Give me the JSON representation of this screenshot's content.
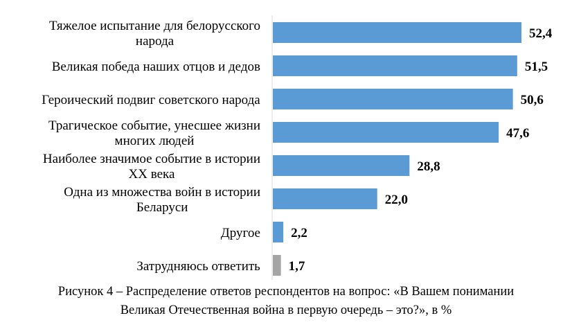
{
  "chart_data": {
    "type": "bar",
    "orientation": "horizontal",
    "categories": [
      [
        "Тяжелое испытание для белорусского",
        "народа"
      ],
      [
        "Великая победа наших отцов и дедов"
      ],
      [
        "Героический подвиг советского народа"
      ],
      [
        "Трагическое событие, унесшее жизни",
        "многих людей"
      ],
      [
        "Наиболее значимое событие в истории",
        "XX века"
      ],
      [
        "Одна из множества войн в истории",
        "Беларуси"
      ],
      [
        "Другое"
      ],
      [
        "Затрудняюсь ответить"
      ]
    ],
    "values": [
      52.4,
      51.5,
      50.6,
      47.6,
      28.8,
      22.0,
      2.2,
      1.7
    ],
    "value_labels": [
      "52,4",
      "51,5",
      "50,6",
      "47,6",
      "28,8",
      "22,0",
      "2,2",
      "1,7"
    ],
    "bar_colors": [
      "#5b9bd5",
      "#5b9bd5",
      "#5b9bd5",
      "#5b9bd5",
      "#5b9bd5",
      "#5b9bd5",
      "#5b9bd5",
      "#a5a5a5"
    ],
    "xlim": [
      0,
      60
    ],
    "grid": false,
    "legend": false
  },
  "caption": {
    "line1": "Рисунок 4 – Распределение ответов респондентов на вопрос: «В Вашем понимании",
    "line2": "Великая Отечественная война в первую очередь – это?», в %"
  }
}
